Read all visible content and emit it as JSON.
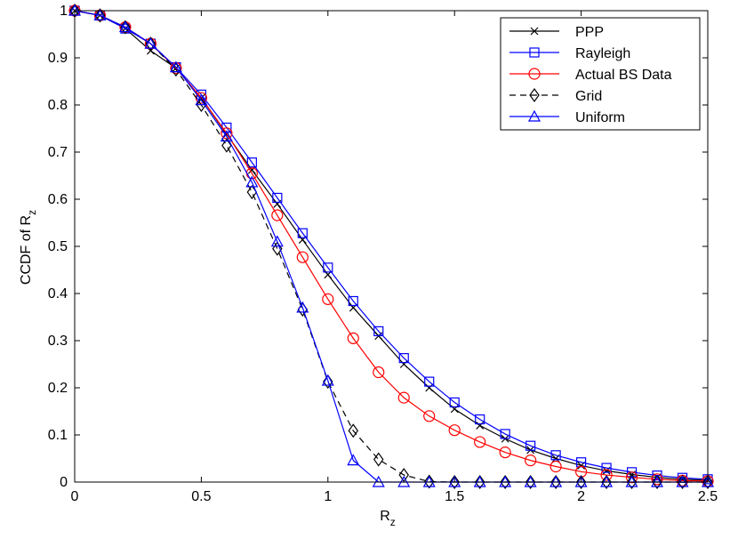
{
  "chart_data": {
    "type": "line",
    "title": "",
    "xlabel": "R",
    "xlabel_sub": "z",
    "ylabel": "CCDF of R",
    "ylabel_sub": "z",
    "xlim": [
      0,
      2.5
    ],
    "ylim": [
      0,
      1
    ],
    "xticks": [
      0,
      0.5,
      1,
      1.5,
      2,
      2.5
    ],
    "xtick_labels": [
      "0",
      "0.5",
      "1",
      "1.5",
      "2",
      "2.5"
    ],
    "yticks": [
      0,
      0.1,
      0.2,
      0.3,
      0.4,
      0.5,
      0.6,
      0.7,
      0.8,
      0.9,
      1
    ],
    "ytick_labels": [
      "0",
      "0.1",
      "0.2",
      "0.3",
      "0.4",
      "0.5",
      "0.6",
      "0.7",
      "0.8",
      "0.9",
      "1"
    ],
    "grid": false,
    "legend_position": "top-right",
    "x": [
      0,
      0.1,
      0.2,
      0.3,
      0.4,
      0.5,
      0.6,
      0.7,
      0.8,
      0.9,
      1.0,
      1.1,
      1.2,
      1.3,
      1.4,
      1.5,
      1.6,
      1.7,
      1.8,
      1.9,
      2.0,
      2.1,
      2.2,
      2.3,
      2.4,
      2.5
    ],
    "series": [
      {
        "name": "PPP",
        "color": "#000000",
        "line": "solid",
        "marker": "x",
        "values": [
          1.0,
          0.99,
          0.962,
          0.915,
          0.878,
          0.815,
          0.738,
          0.662,
          0.59,
          0.514,
          0.44,
          0.37,
          0.31,
          0.25,
          0.2,
          0.155,
          0.12,
          0.092,
          0.068,
          0.05,
          0.035,
          0.024,
          0.016,
          0.01,
          0.006,
          0.004
        ]
      },
      {
        "name": "Rayleigh",
        "color": "#0000ff",
        "line": "solid",
        "marker": "square",
        "values": [
          1.0,
          0.99,
          0.962,
          0.93,
          0.88,
          0.822,
          0.752,
          0.678,
          0.603,
          0.528,
          0.455,
          0.384,
          0.32,
          0.263,
          0.213,
          0.169,
          0.133,
          0.102,
          0.077,
          0.057,
          0.042,
          0.03,
          0.021,
          0.014,
          0.009,
          0.006
        ]
      },
      {
        "name": "Actual BS Data",
        "color": "#ff0000",
        "line": "solid",
        "marker": "circle",
        "values": [
          1.0,
          0.99,
          0.965,
          0.93,
          0.878,
          0.815,
          0.74,
          0.655,
          0.566,
          0.477,
          0.388,
          0.305,
          0.233,
          0.179,
          0.14,
          0.11,
          0.085,
          0.063,
          0.046,
          0.033,
          0.022,
          0.015,
          0.01,
          0.006,
          0.003,
          0.002
        ]
      },
      {
        "name": "Grid",
        "color": "#000000",
        "line": "dashed",
        "marker": "diamond",
        "values": [
          1.0,
          0.99,
          0.965,
          0.93,
          0.875,
          0.8,
          0.714,
          0.615,
          0.495,
          0.366,
          0.213,
          0.109,
          0.048,
          0.015,
          0.001,
          0.0,
          0.0,
          0.0,
          0.0,
          0.0,
          0.0,
          0.0,
          0.0,
          0.0,
          0.0,
          0.0
        ]
      },
      {
        "name": "Uniform",
        "color": "#0000ff",
        "line": "solid",
        "marker": "triangle",
        "values": [
          1.0,
          0.99,
          0.965,
          0.93,
          0.88,
          0.81,
          0.733,
          0.636,
          0.51,
          0.37,
          0.215,
          0.046,
          0.0,
          0.0,
          0.0,
          0.0,
          0.0,
          0.0,
          0.0,
          0.0,
          0.0,
          0.0,
          0.0,
          0.0,
          0.0,
          0.0
        ]
      }
    ]
  }
}
